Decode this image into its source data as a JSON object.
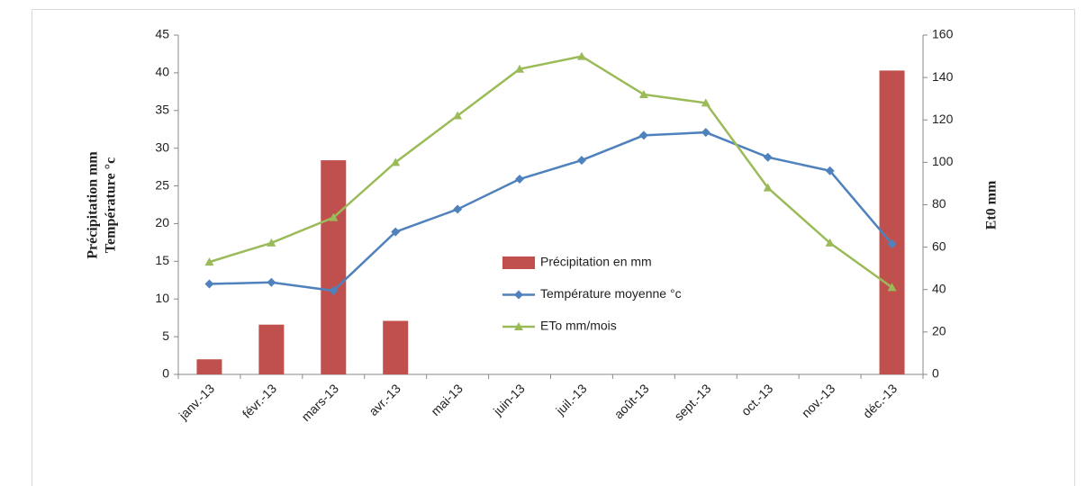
{
  "chart_data": {
    "type": "combo",
    "categories": [
      "janv.-13",
      "févr.-13",
      "mars-13",
      "avr.-13",
      "mai-13",
      "juin-13",
      "juil.-13",
      "août-13",
      "sept.-13",
      "oct.-13",
      "nov.-13",
      "déc.-13"
    ],
    "ylabel": [
      "Précipitation mm",
      "Température °c"
    ],
    "y2label": "Et0 mm",
    "ylim": [
      0,
      45
    ],
    "yticks": [
      0,
      5,
      10,
      15,
      20,
      25,
      30,
      35,
      40,
      45
    ],
    "y2lim": [
      0,
      160
    ],
    "y2ticks": [
      0,
      20,
      40,
      60,
      80,
      100,
      120,
      140,
      160
    ],
    "grid": false,
    "legend": "center",
    "series": [
      {
        "name": "Précipitation en mm",
        "type": "bar",
        "color": "#c0504d",
        "values": [
          2,
          6.6,
          28.4,
          7.1,
          0,
          0,
          0,
          0,
          0,
          0,
          0,
          40.3
        ]
      },
      {
        "name": "Température moyenne °c",
        "type": "line",
        "marker": "diamond",
        "color": "#4f81bd",
        "values": [
          12,
          12.2,
          11.1,
          18.9,
          21.9,
          25.9,
          28.4,
          31.7,
          32.1,
          28.8,
          27,
          17.3
        ]
      },
      {
        "name": "ETo mm/mois",
        "type": "line",
        "marker": "triangle",
        "axis": "y2",
        "color": "#9bbb59",
        "values": [
          53,
          62,
          74,
          100,
          122,
          144,
          150,
          132,
          128,
          88,
          62,
          41
        ]
      }
    ]
  }
}
